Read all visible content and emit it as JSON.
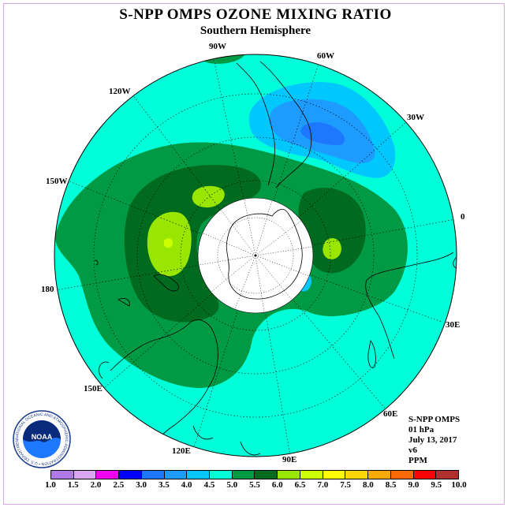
{
  "title": "S-NPP OMPS OZONE MIXING RATIO",
  "subtitle": "Southern Hemisphere",
  "longitude_labels": [
    "90W",
    "60W",
    "30W",
    "0",
    "30E",
    "60E",
    "90E",
    "120E",
    "150E",
    "180",
    "150W",
    "120W"
  ],
  "info": [
    "S-NPP OMPS",
    "01 hPa",
    "July 13, 2017",
    "v6",
    "PPM"
  ],
  "colorbar": {
    "ticks": [
      "1.0",
      "1.5",
      "2.0",
      "2.5",
      "3.0",
      "3.5",
      "4.0",
      "4.5",
      "5.0",
      "5.5",
      "6.0",
      "6.5",
      "7.0",
      "7.5",
      "8.0",
      "8.5",
      "9.0",
      "9.5",
      "10.0"
    ],
    "colors": [
      "#b07ae6",
      "#d9a6f0",
      "#f000f0",
      "#0000ff",
      "#1e78ff",
      "#1e9bff",
      "#00c8ff",
      "#00ffd8",
      "#009944",
      "#006b1e",
      "#99e600",
      "#ccff00",
      "#ffff00",
      "#ffd700",
      "#ffaa00",
      "#ff6a00",
      "#ff0000",
      "#b03030",
      "#8b5a3c"
    ]
  },
  "logo": {
    "text": "NOAA",
    "ring_text": "NATIONAL OCEANIC AND ATMOSPHERIC ADMINISTRATION • U.S. DEPARTMENT OF COMMERCE •"
  }
}
